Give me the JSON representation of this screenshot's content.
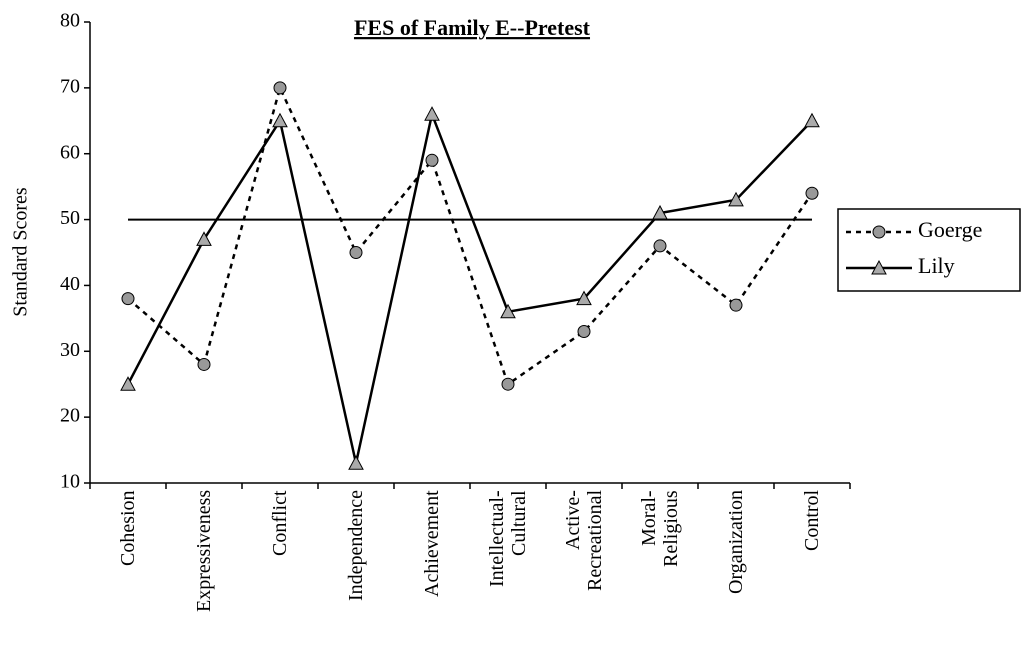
{
  "chart_data": {
    "type": "line",
    "title": "FES of Family E--Pretest",
    "y_label": "Standard Scores",
    "categories": [
      "Cohesion",
      "Expressiveness",
      "Conflict",
      "Independence",
      "Achievement",
      "Intellectual-\nCultural",
      "Active-\nRecreational",
      "Moral-\nReligious",
      "Organization",
      "Control"
    ],
    "series": [
      {
        "name": "Goerge",
        "color": "#000000",
        "marker": "circle",
        "dash": "dotted",
        "values": [
          38,
          28,
          70,
          45,
          59,
          25,
          33,
          46,
          37,
          54
        ]
      },
      {
        "name": "Lily",
        "color": "#000000",
        "marker": "triangle",
        "dash": "solid",
        "values": [
          25,
          47,
          65,
          13,
          66,
          36,
          38,
          51,
          53,
          65
        ]
      }
    ],
    "reference_line": 50,
    "ylim": [
      10,
      80
    ],
    "yticks": [
      10,
      20,
      30,
      40,
      50,
      60,
      70,
      80
    ],
    "legend": "right"
  }
}
